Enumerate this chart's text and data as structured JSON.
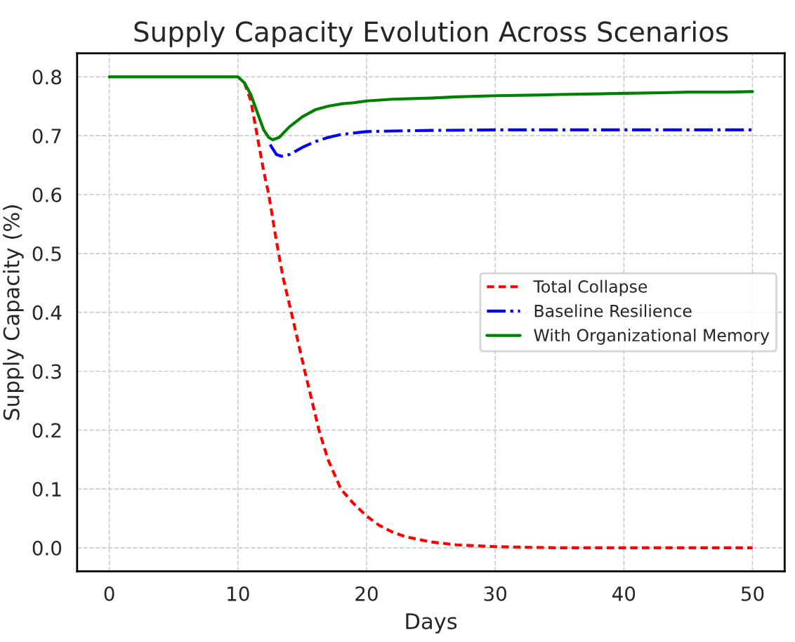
{
  "chart_data": {
    "type": "line",
    "title": "Supply Capacity Evolution Across Scenarios",
    "xlabel": "Days",
    "ylabel": "Supply Capacity (%)",
    "xlim": [
      -2.5,
      52.5
    ],
    "xticks": [
      0,
      10,
      20,
      30,
      40,
      50
    ],
    "ylim": [
      -0.04,
      0.84
    ],
    "yticks": [
      {
        "value": 0,
        "label": "0.0"
      },
      0.1,
      0.2,
      0.3,
      0.4,
      0.5,
      0.6,
      0.7,
      0.8
    ],
    "grid": true,
    "legend": "right",
    "series": [
      {
        "name": "Total Collapse",
        "color": "#ff0000",
        "line_style": "dashed",
        "x": [
          10.5,
          11,
          11.5,
          12,
          12.4,
          13,
          13.5,
          14.15,
          15.2,
          16.3,
          17,
          18,
          19,
          20,
          21,
          22,
          23,
          25,
          27,
          30,
          35,
          40,
          45,
          50
        ],
        "values": [
          0.79,
          0.76,
          0.7,
          0.64,
          0.6,
          0.52,
          0.46,
          0.4,
          0.3,
          0.2,
          0.15,
          0.1,
          0.075,
          0.054,
          0.038,
          0.027,
          0.019,
          0.01,
          0.005,
          0.002,
          0.0,
          0.0,
          0.0,
          0.0
        ]
      },
      {
        "name": "Baseline Resilience",
        "color": "#0000ff",
        "line_style": "dashdot",
        "x": [
          12.5,
          13,
          13.4,
          14,
          15,
          16,
          17,
          18,
          20,
          22,
          25,
          30,
          35,
          40,
          45,
          50
        ],
        "values": [
          0.685,
          0.668,
          0.665,
          0.668,
          0.68,
          0.69,
          0.697,
          0.702,
          0.707,
          0.708,
          0.709,
          0.71,
          0.71,
          0.71,
          0.71,
          0.71
        ]
      },
      {
        "name": "With Organizational Memory",
        "color": "#008000",
        "line_style": "solid",
        "x": [
          0,
          5,
          10,
          10.5,
          11,
          11.5,
          12,
          12.4,
          12.7,
          13.2,
          14,
          15,
          16,
          17,
          18,
          19,
          20,
          22,
          25,
          27,
          30,
          33,
          35,
          38,
          40,
          43,
          45,
          48,
          50
        ],
        "values": [
          0.8,
          0.8,
          0.8,
          0.79,
          0.77,
          0.74,
          0.71,
          0.697,
          0.693,
          0.697,
          0.715,
          0.732,
          0.744,
          0.75,
          0.754,
          0.756,
          0.759,
          0.762,
          0.764,
          0.766,
          0.768,
          0.769,
          0.77,
          0.771,
          0.772,
          0.773,
          0.774,
          0.774,
          0.775
        ]
      }
    ]
  }
}
